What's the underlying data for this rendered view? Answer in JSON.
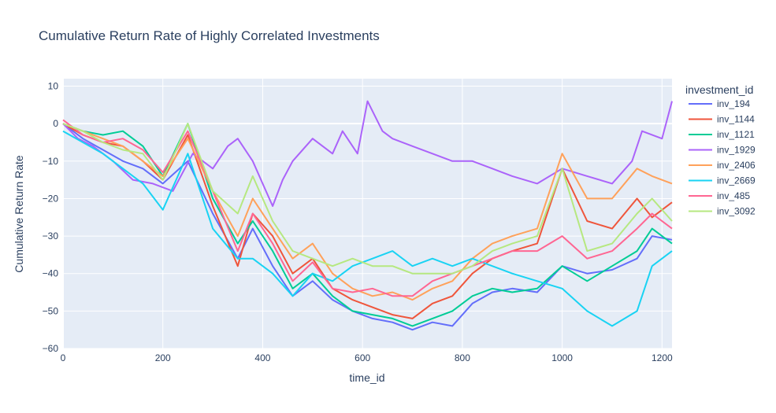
{
  "chart_data": {
    "type": "line",
    "title": "Cumulative Return Rate of Highly Correlated Investments",
    "xlabel": "time_id",
    "ylabel": "Cumulative Return Rate",
    "xlim": [
      0,
      1220
    ],
    "ylim": [
      -60,
      12
    ],
    "xticks": [
      0,
      200,
      400,
      600,
      800,
      1000,
      1200
    ],
    "yticks": [
      10,
      0,
      -10,
      -20,
      -30,
      -40,
      -50,
      -60
    ],
    "grid": true,
    "legend_title": "investment_id",
    "legend_position": "right",
    "series": [
      {
        "name": "inv_194",
        "color": "#636efa",
        "x": [
          0,
          40,
          80,
          120,
          160,
          200,
          250,
          300,
          350,
          380,
          420,
          460,
          500,
          540,
          580,
          620,
          660,
          700,
          740,
          780,
          820,
          860,
          900,
          950,
          1000,
          1050,
          1100,
          1150,
          1180,
          1220
        ],
        "y": [
          0,
          -4,
          -7,
          -10,
          -12,
          -16,
          -10,
          -24,
          -36,
          -28,
          -38,
          -46,
          -42,
          -47,
          -50,
          -52,
          -53,
          -55,
          -53,
          -54,
          -48,
          -45,
          -44,
          -45,
          -38,
          -40,
          -39,
          -36,
          -30,
          -31
        ]
      },
      {
        "name": "inv_1144",
        "color": "#ef553b",
        "x": [
          0,
          40,
          80,
          120,
          160,
          200,
          250,
          300,
          350,
          380,
          420,
          460,
          500,
          540,
          580,
          620,
          660,
          700,
          740,
          780,
          820,
          860,
          900,
          950,
          1000,
          1050,
          1100,
          1150,
          1180,
          1220
        ],
        "y": [
          0,
          -3,
          -5,
          -6,
          -10,
          -15,
          -3,
          -22,
          -38,
          -24,
          -30,
          -40,
          -36,
          -44,
          -47,
          -49,
          -51,
          -52,
          -48,
          -46,
          -40,
          -36,
          -34,
          -32,
          -12,
          -26,
          -28,
          -20,
          -25,
          -21
        ]
      },
      {
        "name": "inv_1121",
        "color": "#00cc96",
        "x": [
          0,
          40,
          80,
          120,
          160,
          200,
          250,
          300,
          350,
          380,
          420,
          460,
          500,
          540,
          580,
          620,
          660,
          700,
          740,
          780,
          820,
          860,
          900,
          950,
          1000,
          1050,
          1100,
          1150,
          1180,
          1220
        ],
        "y": [
          0,
          -2,
          -3,
          -2,
          -6,
          -14,
          0,
          -20,
          -32,
          -26,
          -34,
          -44,
          -40,
          -46,
          -50,
          -51,
          -52,
          -54,
          -52,
          -50,
          -46,
          -44,
          -45,
          -44,
          -38,
          -42,
          -38,
          -34,
          -28,
          -32
        ]
      },
      {
        "name": "inv_1929",
        "color": "#ab63fa",
        "x": [
          0,
          30,
          60,
          100,
          140,
          180,
          220,
          260,
          300,
          330,
          350,
          380,
          400,
          420,
          440,
          460,
          500,
          540,
          560,
          590,
          610,
          640,
          660,
          700,
          740,
          780,
          820,
          860,
          900,
          950,
          1000,
          1050,
          1100,
          1140,
          1160,
          1200,
          1220
        ],
        "y": [
          0,
          -4,
          -6,
          -10,
          -15,
          -16,
          -18,
          -8,
          -12,
          -6,
          -4,
          -10,
          -16,
          -22,
          -15,
          -10,
          -4,
          -8,
          -2,
          -8,
          6,
          -2,
          -4,
          -6,
          -8,
          -10,
          -10,
          -12,
          -14,
          -16,
          -12,
          -14,
          -16,
          -10,
          -2,
          -4,
          6
        ]
      },
      {
        "name": "inv_2406",
        "color": "#ffa15a",
        "x": [
          0,
          40,
          80,
          120,
          160,
          200,
          250,
          300,
          350,
          380,
          420,
          460,
          500,
          540,
          580,
          620,
          660,
          700,
          740,
          780,
          820,
          860,
          900,
          950,
          1000,
          1050,
          1100,
          1150,
          1180,
          1220
        ],
        "y": [
          0,
          -2,
          -4,
          -6,
          -10,
          -14,
          -4,
          -18,
          -30,
          -20,
          -28,
          -36,
          -32,
          -40,
          -44,
          -46,
          -45,
          -47,
          -44,
          -42,
          -36,
          -32,
          -30,
          -28,
          -8,
          -20,
          -20,
          -12,
          -14,
          -16
        ]
      },
      {
        "name": "inv_2669",
        "color": "#19d3f3",
        "x": [
          0,
          40,
          80,
          120,
          160,
          200,
          250,
          300,
          350,
          380,
          420,
          460,
          500,
          540,
          580,
          620,
          660,
          700,
          740,
          780,
          820,
          860,
          900,
          950,
          1000,
          1050,
          1100,
          1150,
          1180,
          1220
        ],
        "y": [
          -2,
          -5,
          -8,
          -12,
          -16,
          -23,
          -8,
          -28,
          -36,
          -36,
          -40,
          -46,
          -40,
          -42,
          -38,
          -36,
          -34,
          -38,
          -36,
          -38,
          -36,
          -38,
          -40,
          -42,
          -44,
          -50,
          -54,
          -50,
          -38,
          -34
        ]
      },
      {
        "name": "inv_485",
        "color": "#ff6692",
        "x": [
          0,
          40,
          80,
          120,
          160,
          200,
          250,
          300,
          350,
          380,
          420,
          460,
          500,
          540,
          580,
          620,
          660,
          700,
          740,
          780,
          820,
          860,
          900,
          950,
          1000,
          1050,
          1100,
          1150,
          1180,
          1220
        ],
        "y": [
          1,
          -3,
          -5,
          -4,
          -7,
          -13,
          -2,
          -18,
          -34,
          -24,
          -32,
          -42,
          -37,
          -44,
          -45,
          -44,
          -46,
          -46,
          -42,
          -40,
          -38,
          -36,
          -34,
          -34,
          -30,
          -36,
          -34,
          -28,
          -24,
          -28
        ]
      },
      {
        "name": "inv_3092",
        "color": "#b6e880",
        "x": [
          0,
          40,
          80,
          120,
          160,
          200,
          250,
          300,
          350,
          380,
          420,
          460,
          500,
          540,
          580,
          620,
          660,
          700,
          740,
          780,
          820,
          860,
          900,
          950,
          1000,
          1050,
          1100,
          1150,
          1180,
          1220
        ],
        "y": [
          0,
          -2,
          -5,
          -7,
          -8,
          -15,
          0,
          -18,
          -24,
          -14,
          -26,
          -34,
          -36,
          -38,
          -36,
          -38,
          -38,
          -40,
          -40,
          -40,
          -38,
          -34,
          -32,
          -30,
          -12,
          -34,
          -32,
          -24,
          -20,
          -26
        ]
      }
    ]
  }
}
